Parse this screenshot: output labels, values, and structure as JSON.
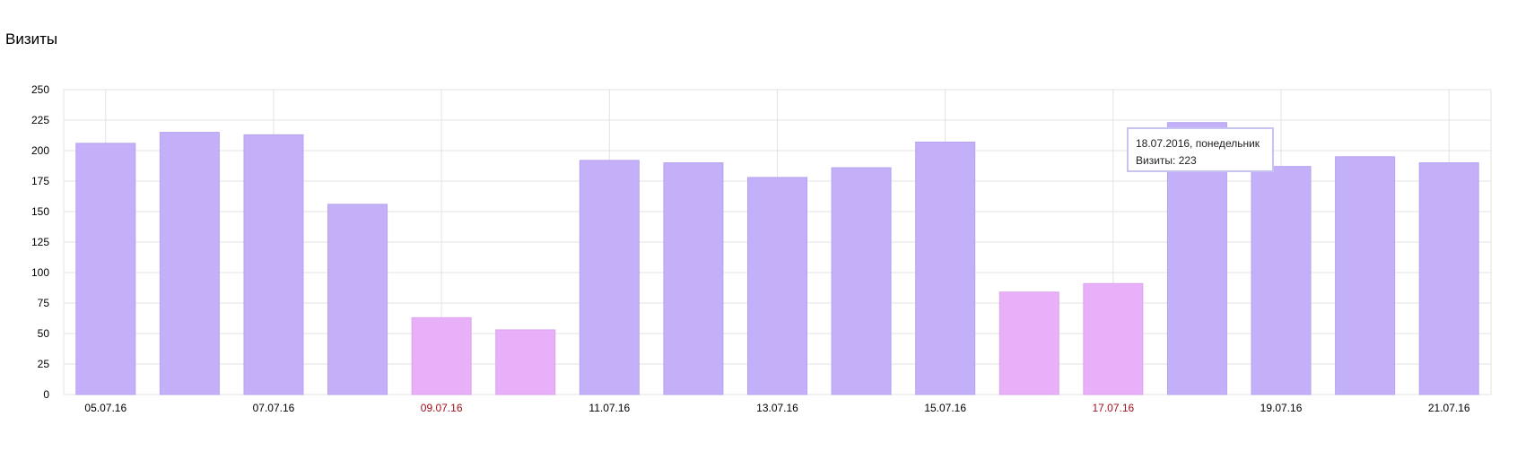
{
  "title": "Визиты",
  "colors": {
    "weekday_bar": "#c4b0f8",
    "weekday_bar_stroke": "#b6a2f0",
    "weekend_bar": "#e8b0f8",
    "weekend_bar_stroke": "#dca2ee",
    "weekend_label": "#a0101c",
    "label": "#000000",
    "grid": "#e3e3e3"
  },
  "tooltip": {
    "date_line": "18.07.2016, понедельник",
    "value_line": "Визиты: 223"
  },
  "chart_data": {
    "type": "bar",
    "title": "Визиты",
    "xlabel": "",
    "ylabel": "",
    "ylim": [
      0,
      250
    ],
    "yticks": [
      0,
      25,
      50,
      75,
      100,
      125,
      150,
      175,
      200,
      225,
      250
    ],
    "grid": true,
    "legend": "none",
    "categories": [
      "05.07.16",
      "06.07.16",
      "07.07.16",
      "08.07.16",
      "09.07.16",
      "10.07.16",
      "11.07.16",
      "12.07.16",
      "13.07.16",
      "14.07.16",
      "15.07.16",
      "16.07.16",
      "17.07.16",
      "18.07.16",
      "19.07.16",
      "20.07.16",
      "21.07.16"
    ],
    "x_tick_labels": [
      "05.07.16",
      "",
      "07.07.16",
      "",
      "09.07.16",
      "",
      "11.07.16",
      "",
      "13.07.16",
      "",
      "15.07.16",
      "",
      "17.07.16",
      "",
      "19.07.16",
      "",
      "21.07.16"
    ],
    "values": [
      206,
      215,
      213,
      156,
      63,
      53,
      192,
      190,
      178,
      186,
      207,
      84,
      91,
      223,
      187,
      195,
      190
    ],
    "weekend": [
      false,
      false,
      false,
      false,
      true,
      true,
      false,
      false,
      false,
      false,
      false,
      true,
      true,
      false,
      false,
      false,
      false
    ]
  }
}
